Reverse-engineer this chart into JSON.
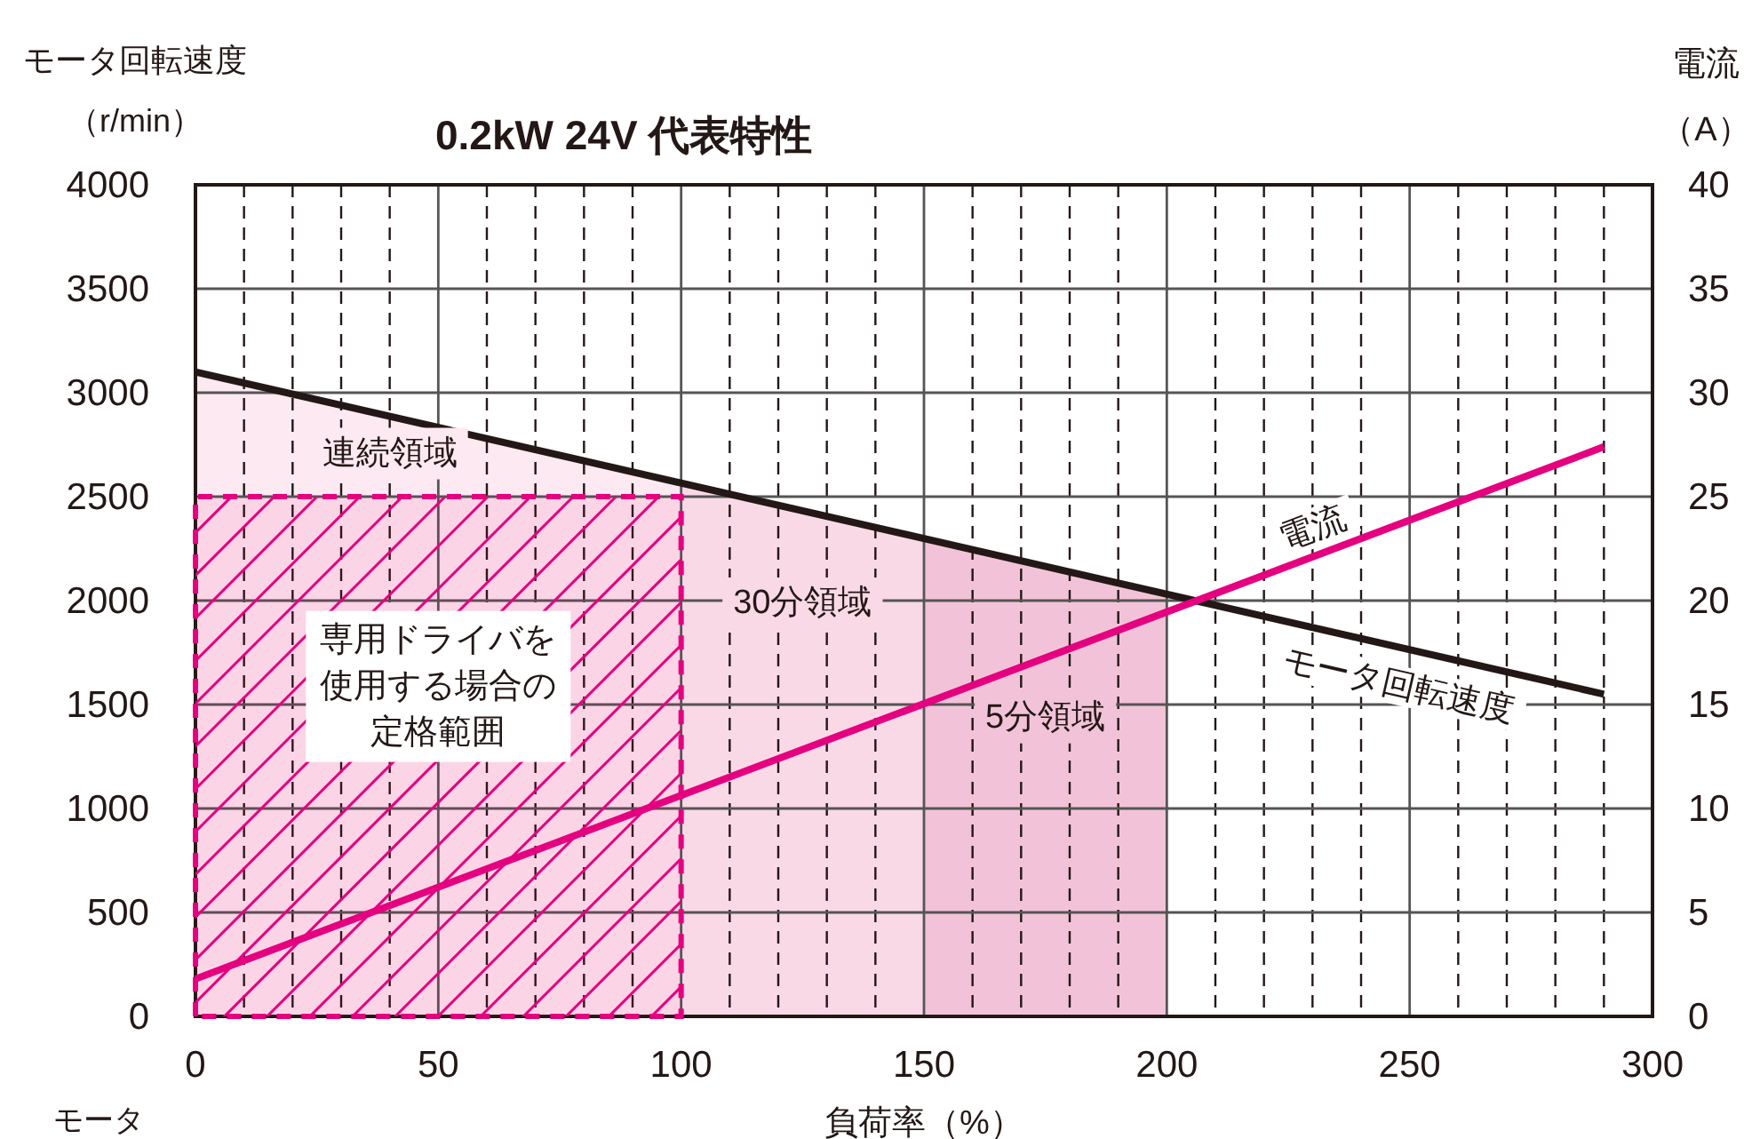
{
  "chart_data": {
    "type": "line",
    "title": "0.2kW 24V 代表特性",
    "xlabel": "負荷率（%）",
    "ylabel": "モータ回転速度（r/min）",
    "y2label": "電流（A）",
    "xlim": [
      0,
      300
    ],
    "ylim": [
      0,
      4000
    ],
    "y2lim": [
      0,
      40
    ],
    "xticks": [
      0,
      {
        "value": 10,
        "label": null
      },
      {
        "value": 20,
        "label": null
      },
      {
        "value": 30,
        "label": null
      },
      {
        "value": 40,
        "label": null
      },
      50,
      {
        "value": 60,
        "label": null
      },
      {
        "value": 70,
        "label": null
      },
      {
        "value": 80,
        "label": null
      },
      {
        "value": 90,
        "label": null
      },
      100,
      {
        "value": 110,
        "label": null
      },
      {
        "value": 120,
        "label": null
      },
      {
        "value": 130,
        "label": null
      },
      {
        "value": 140,
        "label": null
      },
      150,
      {
        "value": 160,
        "label": null
      },
      {
        "value": 170,
        "label": null
      },
      {
        "value": 180,
        "label": null
      },
      {
        "value": 190,
        "label": null
      },
      200,
      {
        "value": 210,
        "label": null
      },
      {
        "value": 220,
        "label": null
      },
      {
        "value": 230,
        "label": null
      },
      {
        "value": 240,
        "label": null
      },
      250,
      {
        "value": 260,
        "label": null
      },
      {
        "value": 270,
        "label": null
      },
      {
        "value": 280,
        "label": null
      },
      {
        "value": 290,
        "label": null
      },
      300
    ],
    "yticks": [
      0,
      500,
      1000,
      1500,
      2000,
      2500,
      3000,
      3500,
      4000
    ],
    "y2ticks": [
      0,
      5,
      10,
      15,
      20,
      25,
      30,
      35,
      40
    ],
    "grid": true,
    "series": [
      {
        "type": "area",
        "color": "#fde9f1",
        "x": [
          0,
          100
        ],
        "values": [
          3100,
          2570
        ]
      },
      {
        "type": "area",
        "color": "#f9d9e6",
        "x": [
          100,
          150
        ],
        "values": [
          2570,
          2300
        ]
      },
      {
        "type": "area",
        "color": "#f2c3d8",
        "x": [
          150,
          200
        ],
        "values": [
          2300,
          2030
        ]
      },
      {
        "type": "area",
        "color": "#e4007f",
        "line_style": "dashed",
        "x": [
          0,
          100
        ],
        "values": [
          2500,
          2500
        ]
      },
      {
        "name": "モータ回転速度",
        "color": "#231815",
        "x": [
          0,
          290
        ],
        "values": [
          3100,
          1550
        ]
      },
      {
        "name": "電流",
        "axis": "y2",
        "color": "#e4007f",
        "x": [
          0,
          290
        ],
        "values": [
          1.8,
          27.4
        ]
      }
    ],
    "annotations": [
      "連続領域",
      "30分領域",
      "5分領域",
      "専用ドライバを使用する場合の定格範囲",
      "モータ"
    ]
  }
}
